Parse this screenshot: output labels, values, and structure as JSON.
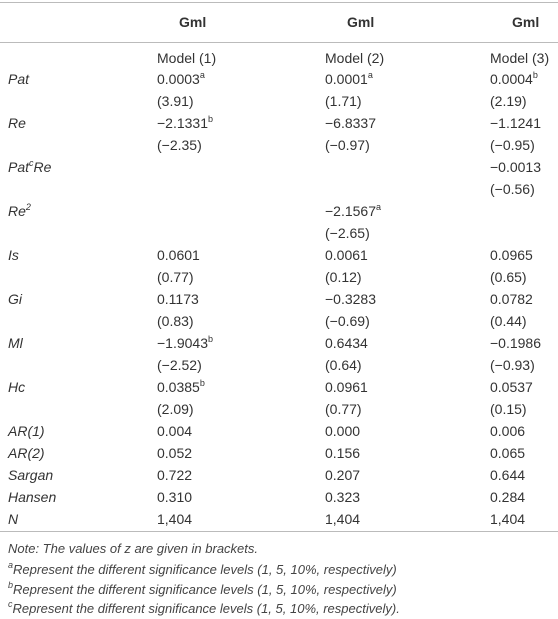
{
  "table": {
    "header": [
      "Gml",
      "Gml",
      "Gml"
    ],
    "models": [
      "Model (1)",
      "Model (2)",
      "Model (3)"
    ],
    "rows": [
      {
        "label": {
          "text": "Pat"
        },
        "cells": [
          {
            "text": "0.0003",
            "sup": "a"
          },
          {
            "text": "0.0001",
            "sup": "a"
          },
          {
            "text": "0.0004",
            "sup": "b"
          }
        ]
      },
      {
        "label": null,
        "cells": [
          {
            "text": "(3.91)"
          },
          {
            "text": "(1.71)"
          },
          {
            "text": "(2.19)"
          }
        ]
      },
      {
        "label": {
          "text": "Re"
        },
        "cells": [
          {
            "text": "−2.1331",
            "sup": "b"
          },
          {
            "text": "−6.8337"
          },
          {
            "text": "−1.1241"
          }
        ]
      },
      {
        "label": null,
        "cells": [
          {
            "text": "(−2.35)"
          },
          {
            "text": "(−0.97)"
          },
          {
            "text": "(−0.95)"
          }
        ]
      },
      {
        "label": {
          "text": "Pat",
          "sup": "c",
          "after": "Re"
        },
        "cells": [
          null,
          null,
          {
            "text": "−0.0013"
          }
        ]
      },
      {
        "label": null,
        "cells": [
          null,
          null,
          {
            "text": "(−0.56)"
          }
        ]
      },
      {
        "label": {
          "text": "Re",
          "sup": "2"
        },
        "cells": [
          null,
          {
            "text": "−2.1567",
            "sup": "a"
          },
          null
        ]
      },
      {
        "label": null,
        "cells": [
          null,
          {
            "text": "(−2.65)"
          },
          null
        ]
      },
      {
        "label": {
          "text": "Is"
        },
        "cells": [
          {
            "text": "0.0601"
          },
          {
            "text": "0.0061"
          },
          {
            "text": "0.0965"
          }
        ]
      },
      {
        "label": null,
        "cells": [
          {
            "text": "(0.77)"
          },
          {
            "text": "(0.12)"
          },
          {
            "text": "(0.65)"
          }
        ]
      },
      {
        "label": {
          "text": "Gi"
        },
        "cells": [
          {
            "text": "0.1173"
          },
          {
            "text": "−0.3283"
          },
          {
            "text": "0.0782"
          }
        ]
      },
      {
        "label": null,
        "cells": [
          {
            "text": "(0.83)"
          },
          {
            "text": "(−0.69)"
          },
          {
            "text": "(0.44)"
          }
        ]
      },
      {
        "label": {
          "text": "Ml"
        },
        "cells": [
          {
            "text": "−1.9043",
            "sup": "b"
          },
          {
            "text": "0.6434"
          },
          {
            "text": "−0.1986"
          }
        ]
      },
      {
        "label": null,
        "cells": [
          {
            "text": "(−2.52)"
          },
          {
            "text": "(0.64)"
          },
          {
            "text": "(−0.93)"
          }
        ]
      },
      {
        "label": {
          "text": "Hc"
        },
        "cells": [
          {
            "text": "0.0385",
            "sup": "b"
          },
          {
            "text": "0.0961"
          },
          {
            "text": "0.0537"
          }
        ]
      },
      {
        "label": null,
        "cells": [
          {
            "text": "(2.09)"
          },
          {
            "text": "(0.77)"
          },
          {
            "text": "(0.15)"
          }
        ]
      },
      {
        "label": {
          "text": "AR(1)"
        },
        "cells": [
          {
            "text": "0.004"
          },
          {
            "text": "0.000"
          },
          {
            "text": "0.006"
          }
        ]
      },
      {
        "label": {
          "text": "AR(2)"
        },
        "cells": [
          {
            "text": "0.052"
          },
          {
            "text": "0.156"
          },
          {
            "text": "0.065"
          }
        ]
      },
      {
        "label": {
          "text": "Sargan"
        },
        "cells": [
          {
            "text": "0.722"
          },
          {
            "text": "0.207"
          },
          {
            "text": "0.644"
          }
        ]
      },
      {
        "label": {
          "text": "Hansen"
        },
        "cells": [
          {
            "text": "0.310"
          },
          {
            "text": "0.323"
          },
          {
            "text": "0.284"
          }
        ]
      },
      {
        "label": {
          "text": "N"
        },
        "cells": [
          {
            "text": "1,404"
          },
          {
            "text": "1,404"
          },
          {
            "text": "1,404"
          }
        ]
      }
    ]
  },
  "notes": {
    "note": "Note: The values of z are given in brackets.",
    "footnotes": [
      {
        "mark": "a",
        "text": "Represent the different significance levels (1, 5, 10%, respectively)"
      },
      {
        "mark": "b",
        "text": "Represent the different significance levels (1, 5, 10%, respectively)"
      },
      {
        "mark": "c",
        "text": "Represent the different significance levels (1, 5, 10%, respectively)."
      }
    ]
  }
}
